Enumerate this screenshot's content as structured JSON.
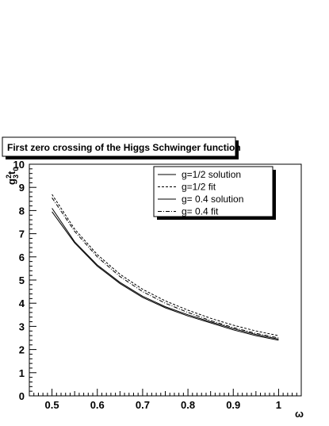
{
  "chart_data": {
    "type": "line",
    "title": "First zero crossing of the Higgs Schwinger function",
    "xlabel": "ω",
    "ylabel": "g",
    "ylabel_sup": "2",
    "ylabel_sub": "3",
    "ylabel_tail": "t",
    "ylabel_tail_sub": "0",
    "xlim": [
      0.45,
      1.05
    ],
    "ylim": [
      0,
      10
    ],
    "x_ticks": [
      "0.5",
      "0.6",
      "0.7",
      "0.8",
      "0.9",
      "1"
    ],
    "y_ticks": [
      "0",
      "1",
      "2",
      "3",
      "4",
      "5",
      "6",
      "7",
      "8",
      "9",
      "10"
    ],
    "grid": false,
    "legend_position": "top-right",
    "series": [
      {
        "name": "g=1/2 solution",
        "style": "solid",
        "x": [
          0.5,
          0.55,
          0.6,
          0.65,
          0.7,
          0.75,
          0.8,
          0.85,
          0.9,
          0.95,
          1.0
        ],
        "y": [
          8.1,
          6.65,
          5.65,
          4.9,
          4.3,
          3.85,
          3.5,
          3.2,
          2.9,
          2.65,
          2.45
        ]
      },
      {
        "name": "g=1/2 fit",
        "style": "dashed",
        "x": [
          0.5,
          0.55,
          0.6,
          0.65,
          0.7,
          0.75,
          0.8,
          0.85,
          0.9,
          0.95,
          1.0
        ],
        "y": [
          8.7,
          7.2,
          6.1,
          5.25,
          4.6,
          4.1,
          3.7,
          3.35,
          3.05,
          2.8,
          2.6
        ]
      },
      {
        "name": "g= 0.4 solution",
        "style": "solid",
        "x": [
          0.5,
          0.55,
          0.6,
          0.65,
          0.7,
          0.75,
          0.8,
          0.85,
          0.9,
          0.95,
          1.0
        ],
        "y": [
          7.95,
          6.6,
          5.6,
          4.85,
          4.25,
          3.8,
          3.45,
          3.15,
          2.85,
          2.6,
          2.4
        ]
      },
      {
        "name": "g= 0.4 fit",
        "style": "dashdot",
        "x": [
          0.5,
          0.55,
          0.6,
          0.65,
          0.7,
          0.75,
          0.8,
          0.85,
          0.9,
          0.95,
          1.0
        ],
        "y": [
          8.55,
          7.1,
          6.0,
          5.15,
          4.5,
          4.0,
          3.6,
          3.25,
          2.95,
          2.7,
          2.5
        ]
      }
    ]
  }
}
